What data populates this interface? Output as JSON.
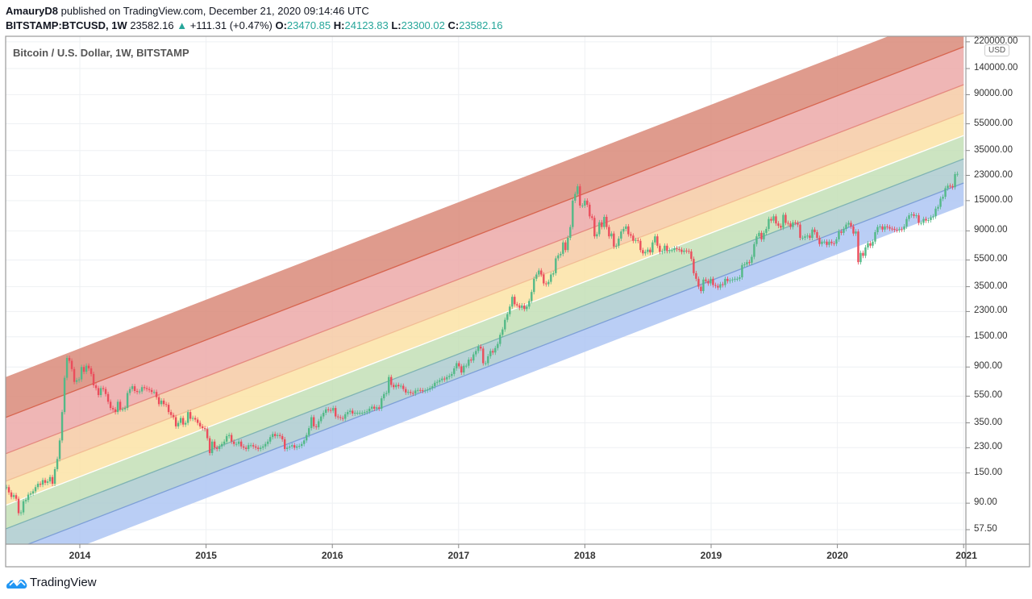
{
  "header": {
    "author": "AmauryD8",
    "published": "published on TradingView.com, December 21, 2020 09:14:46 UTC",
    "symbol": "BITSTAMP:BTCUSD, 1W",
    "last": "23582.16",
    "change": "+111.31 (+0.47%)",
    "o_label": "O:",
    "o": "23470.85",
    "h_label": "H:",
    "h": "24123.83",
    "l_label": "L:",
    "l": "23300.02",
    "c_label": "C:",
    "c": "23582.16",
    "up_icon": "triangle-up-icon"
  },
  "chart_title": "Bitcoin / U.S. Dollar, 1W, BITSTAMP",
  "currency": "USD",
  "brand": "TradingView",
  "colors": {
    "up": "#53b987",
    "down": "#eb4d5c",
    "accent": "#26a69a",
    "brand": "#2196f3"
  },
  "chart_data": {
    "type": "candlestick",
    "title": "Bitcoin / U.S. Dollar, 1W, BITSTAMP",
    "y_scale": "log",
    "ylim": [
      40,
      260000
    ],
    "xlim": [
      "2013-05-30",
      "2021-01-01"
    ],
    "grid": true,
    "y_ticks": [
      "220000.00",
      "140000.00",
      "90000.00",
      "55000.00",
      "35000.00",
      "23000.00",
      "15000.00",
      "9000.00",
      "5500.00",
      "3500.00",
      "2300.00",
      "1500.00",
      "900.00",
      "550.00",
      "350.00",
      "230.00",
      "150.00",
      "90.00",
      "57.50"
    ],
    "x_ticks": [
      "2014",
      "2015",
      "2016",
      "2017",
      "2018",
      "2019",
      "2020",
      "2021"
    ],
    "interval": "1W",
    "start": "2013-06-03",
    "closes": [
      118,
      108,
      100,
      103,
      97,
      76,
      77,
      93,
      95,
      104,
      106,
      110,
      118,
      125,
      123,
      133,
      127,
      130,
      140,
      125,
      160,
      190,
      260,
      420,
      750,
      1050,
      1000,
      870,
      700,
      720,
      730,
      900,
      830,
      920,
      880,
      800,
      660,
      630,
      560,
      630,
      620,
      570,
      500,
      450,
      440,
      420,
      500,
      440,
      440,
      450,
      580,
      620,
      650,
      600,
      590,
      595,
      640,
      630,
      620,
      610,
      590,
      590,
      540,
      480,
      510,
      480,
      475,
      420,
      400,
      385,
      330,
      350,
      380,
      340,
      350,
      420,
      375,
      380,
      370,
      350,
      330,
      320,
      315,
      270,
      210,
      255,
      230,
      225,
      235,
      245,
      255,
      280,
      285,
      255,
      245,
      245,
      255,
      235,
      230,
      225,
      240,
      240,
      235,
      230,
      225,
      230,
      235,
      245,
      255,
      275,
      290,
      280,
      285,
      280,
      265,
      225,
      230,
      235,
      240,
      230,
      235,
      237,
      245,
      260,
      285,
      320,
      385,
      330,
      325,
      360,
      390,
      415,
      440,
      435,
      430,
      450,
      390,
      385,
      380,
      375,
      405,
      420,
      430,
      410,
      415,
      415,
      415,
      415,
      420,
      425,
      445,
      460,
      445,
      455,
      445,
      530,
      570,
      580,
      760,
      665,
      640,
      665,
      650,
      655,
      620,
      585,
      590,
      580,
      575,
      605,
      610,
      607,
      600,
      605,
      615,
      630,
      650,
      690,
      700,
      720,
      740,
      730,
      760,
      775,
      800,
      880,
      960,
      910,
      820,
      920,
      920,
      1020,
      1005,
      1115,
      1180,
      1270,
      1230,
      960,
      960,
      1080,
      1180,
      1150,
      1240,
      1330,
      1550,
      1700,
      2000,
      2200,
      2500,
      2950,
      2600,
      2550,
      2450,
      2550,
      2400,
      2500,
      2750,
      3200,
      4000,
      4300,
      4600,
      4300,
      3700,
      3650,
      3800,
      4300,
      4400,
      5650,
      5950,
      6100,
      7400,
      6500,
      8000,
      9600,
      15000,
      16800,
      19100,
      13800,
      13800,
      15000,
      14000,
      11500,
      11200,
      8200,
      8500,
      10400,
      9600,
      11400,
      9600,
      8200,
      8600,
      6900,
      7000,
      7900,
      8900,
      9300,
      9700,
      8500,
      8300,
      7600,
      7700,
      7600,
      6500,
      6150,
      6300,
      6550,
      6250,
      7400,
      8200,
      7000,
      6300,
      6400,
      7000,
      6400,
      6500,
      6500,
      6700,
      6600,
      6550,
      6300,
      6450,
      6400,
      6350,
      5600,
      4400,
      4000,
      3500,
      3250,
      3950,
      3850,
      3700,
      4000,
      3600,
      3550,
      3450,
      3650,
      3600,
      4000,
      3850,
      3900,
      3950,
      4000,
      4000,
      4100,
      5050,
      5100,
      5300,
      5250,
      5800,
      7200,
      8200,
      8700,
      7800,
      8700,
      9300,
      11000,
      10700,
      11500,
      10200,
      9800,
      9500,
      11800,
      10300,
      10200,
      9600,
      10400,
      10300,
      10000,
      8000,
      8000,
      8200,
      8300,
      8000,
      9200,
      8800,
      8000,
      7200,
      7500,
      7500,
      7100,
      7500,
      7300,
      7250,
      7800,
      8900,
      8700,
      9300,
      10000,
      10300,
      9700,
      8600,
      8900,
      5300,
      6200,
      5900,
      6800,
      7300,
      7000,
      7500,
      8800,
      9600,
      9700,
      9200,
      9700,
      9600,
      9350,
      9300,
      9150,
      9100,
      9250,
      9200,
      9700,
      11000,
      11700,
      11900,
      11600,
      11700,
      10300,
      10300,
      11000,
      10700,
      10800,
      11300,
      11500,
      13100,
      13500,
      15500,
      16000,
      18500,
      19300,
      19200,
      18800,
      23470.85,
      23582.16
    ],
    "rainbow_bands": {
      "dates": [
        "2013-05-30",
        "2021-01-01"
      ],
      "boundaries": [
        [
          756,
          395000
        ],
        [
          382,
          202000
        ],
        [
          207,
          106600
        ],
        [
          130,
          66200
        ],
        [
          86.5,
          45100
        ],
        [
          58,
          30400
        ],
        [
          38.7,
          20200
        ],
        [
          26.4,
          13800
        ]
      ],
      "fills": [
        "#d98a79",
        "#eca9a8",
        "#f6caa4",
        "#fce3a6",
        "#c3dfb6",
        "#adcbcf",
        "#aec6f3"
      ],
      "lines": [
        "#d7654f",
        "#e58a80",
        "#f2bd95",
        "#ffffff",
        "#7fb3b3",
        "#7d9fd6",
        "#aec6f3"
      ]
    }
  }
}
